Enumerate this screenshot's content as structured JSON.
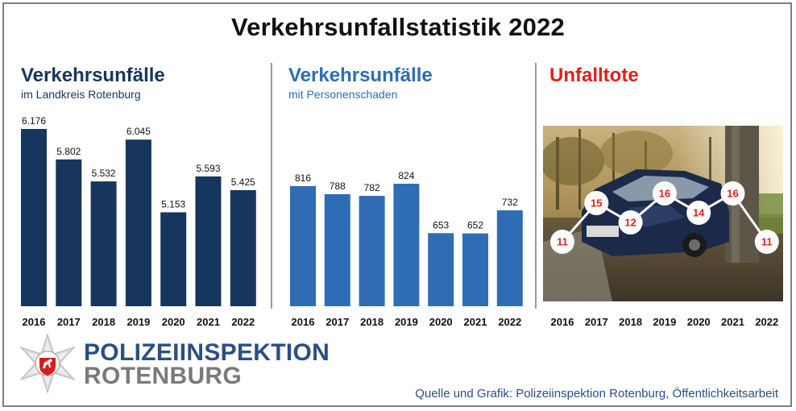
{
  "header": {
    "title": "Verkehrsunfallstatistik 2022"
  },
  "colors": {
    "panel1": "#17365d",
    "panel2": "#2e6db5",
    "panel3": "#e31e1e"
  },
  "panels": [
    {
      "title": "Verkehrsunfälle",
      "subtitle": "im Landkreis Rotenburg"
    },
    {
      "title": "Verkehrsunfälle",
      "subtitle": "mit Personenschaden"
    },
    {
      "title": "Unfalltote",
      "subtitle": ""
    }
  ],
  "chart_data": [
    {
      "type": "bar",
      "title": "Verkehrsunfälle",
      "subtitle": "im Landkreis Rotenburg",
      "categories": [
        "2016",
        "2017",
        "2018",
        "2019",
        "2020",
        "2021",
        "2022"
      ],
      "values": [
        6176,
        5802,
        5532,
        6045,
        5153,
        5593,
        5425
      ],
      "labels": [
        "6.176",
        "5.802",
        "5.532",
        "6.045",
        "5.153",
        "5.593",
        "5.425"
      ],
      "ylim": [
        4000,
        6400
      ],
      "grid": false
    },
    {
      "type": "bar",
      "title": "Verkehrsunfälle",
      "subtitle": "mit Personenschaden",
      "categories": [
        "2016",
        "2017",
        "2018",
        "2019",
        "2020",
        "2021",
        "2022"
      ],
      "values": [
        816,
        788,
        782,
        824,
        653,
        652,
        732
      ],
      "labels": [
        "816",
        "788",
        "782",
        "824",
        "653",
        "652",
        "732"
      ],
      "ylim": [
        400,
        950
      ],
      "grid": false
    },
    {
      "type": "line",
      "title": "Unfalltote",
      "categories": [
        "2016",
        "2017",
        "2018",
        "2019",
        "2020",
        "2021",
        "2022"
      ],
      "values": [
        11,
        15,
        12,
        16,
        14,
        16,
        11
      ],
      "labels": [
        "11",
        "15",
        "12",
        "16",
        "14",
        "16",
        "11"
      ],
      "ylim": [
        8,
        18
      ],
      "background": "photo of a crashed car against a tree",
      "grid": false
    }
  ],
  "logo": {
    "line1": "POLIZEIINSPEKTION",
    "line2": "ROTENBURG",
    "icon": "police-star-horse-emblem"
  },
  "footer": {
    "source": "Quelle und Grafik: Polizeiinspektion Rotenburg, Öffentlichkeitsarbeit"
  }
}
